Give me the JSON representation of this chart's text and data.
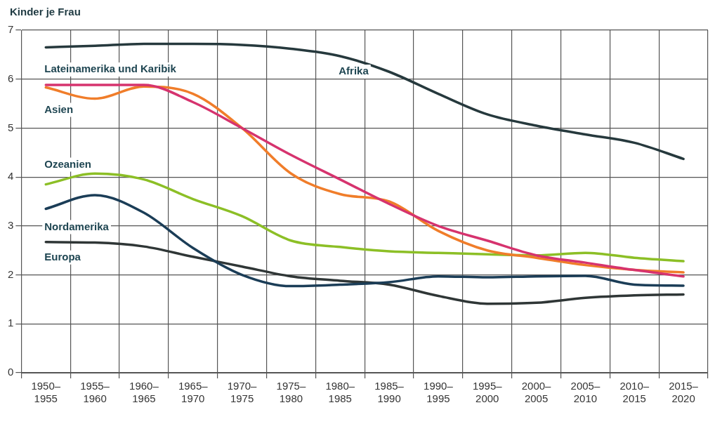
{
  "chart_data": {
    "type": "line",
    "ylabel": "Kinder je Frau",
    "categories": [
      "1950–1955",
      "1955–1960",
      "1960–1965",
      "1965–1970",
      "1970–1975",
      "1975–1980",
      "1980–1985",
      "1985–1990",
      "1990–1995",
      "1995–2000",
      "2000–2005",
      "2005–2010",
      "2010–2015",
      "2015–2020"
    ],
    "series": [
      {
        "name": "Afrika",
        "color": "#26393d",
        "values": [
          6.65,
          6.68,
          6.72,
          6.72,
          6.7,
          6.62,
          6.47,
          6.15,
          5.7,
          5.28,
          5.05,
          4.87,
          4.7,
          4.37
        ]
      },
      {
        "name": "Lateinamerika und Karibik",
        "color": "#d6336e",
        "values": [
          5.88,
          5.88,
          5.88,
          5.53,
          5.0,
          4.45,
          3.95,
          3.45,
          3.0,
          2.7,
          2.4,
          2.25,
          2.1,
          1.97
        ]
      },
      {
        "name": "Asien",
        "color": "#f07d2a",
        "values": [
          5.83,
          5.6,
          5.85,
          5.7,
          5.0,
          4.07,
          3.65,
          3.5,
          2.9,
          2.5,
          2.35,
          2.2,
          2.1,
          2.05
        ]
      },
      {
        "name": "Ozeanien",
        "color": "#8cbf26",
        "values": [
          3.85,
          4.07,
          3.95,
          3.55,
          3.2,
          2.7,
          2.57,
          2.48,
          2.45,
          2.42,
          2.4,
          2.45,
          2.35,
          2.28
        ]
      },
      {
        "name": "Nordamerika",
        "color": "#1b3d57",
        "values": [
          3.35,
          3.63,
          3.27,
          2.55,
          2.0,
          1.77,
          1.8,
          1.85,
          1.97,
          1.95,
          1.97,
          1.98,
          1.8,
          1.78
        ]
      },
      {
        "name": "Europa",
        "color": "#2f3636",
        "values": [
          2.67,
          2.66,
          2.58,
          2.37,
          2.17,
          1.97,
          1.88,
          1.8,
          1.57,
          1.41,
          1.43,
          1.53,
          1.58,
          1.6
        ]
      }
    ],
    "ylim": [
      0,
      7
    ],
    "yticks": [
      0,
      1,
      2,
      3,
      4,
      5,
      6,
      7
    ],
    "grid": true,
    "legend": false,
    "marker": "none",
    "line_style": "solid"
  }
}
